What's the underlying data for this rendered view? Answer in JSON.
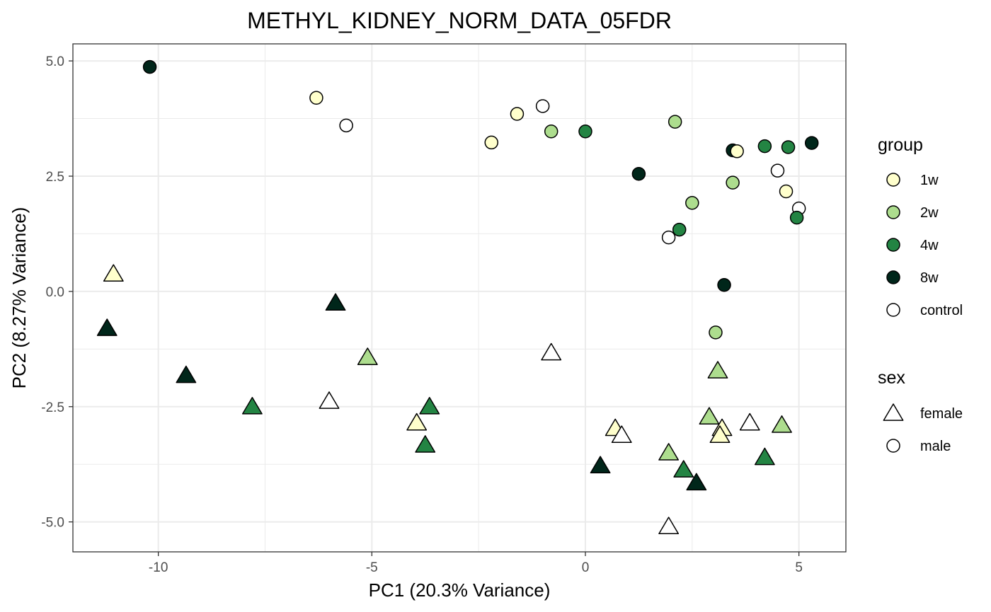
{
  "chart_data": {
    "type": "scatter",
    "title": "METHYL_KIDNEY_NORM_DATA_05FDR",
    "xlabel": "PC1 (20.3% Variance)",
    "ylabel": "PC2 (8.27% Variance)",
    "xlim": [
      -12.0,
      6.1
    ],
    "ylim": [
      -5.65,
      5.37
    ],
    "x_ticks": [
      -10,
      -5,
      0,
      5
    ],
    "x_tick_labels": [
      "-10",
      "-5",
      "0",
      "5"
    ],
    "y_ticks": [
      5.0,
      2.5,
      0.0,
      -2.5,
      -5.0
    ],
    "y_tick_labels": [
      "5.0",
      "2.5",
      "0.0",
      "-2.5",
      "-5.0"
    ],
    "grid": true,
    "legend_position": "right",
    "colors": {
      "1w": "#ffffcc",
      "2w": "#addd8e",
      "4w": "#238443",
      "8w": "#00261a",
      "control": "#ffffff"
    },
    "legends": {
      "group": {
        "title": "group",
        "items": [
          "1w",
          "2w",
          "4w",
          "8w",
          "control"
        ]
      },
      "sex": {
        "title": "sex",
        "items": [
          {
            "label": "female",
            "shape": "triangle"
          },
          {
            "label": "male",
            "shape": "circle"
          }
        ]
      }
    },
    "points": [
      {
        "x": -10.2,
        "y": 4.87,
        "group": "8w",
        "sex": "male"
      },
      {
        "x": -6.3,
        "y": 4.2,
        "group": "1w",
        "sex": "male"
      },
      {
        "x": -5.6,
        "y": 3.6,
        "group": "control",
        "sex": "male"
      },
      {
        "x": -2.2,
        "y": 3.23,
        "group": "1w",
        "sex": "male"
      },
      {
        "x": -1.6,
        "y": 3.85,
        "group": "1w",
        "sex": "male"
      },
      {
        "x": -1.0,
        "y": 4.02,
        "group": "control",
        "sex": "male"
      },
      {
        "x": -0.8,
        "y": 3.47,
        "group": "2w",
        "sex": "male"
      },
      {
        "x": 0.0,
        "y": 3.47,
        "group": "4w",
        "sex": "male"
      },
      {
        "x": 2.1,
        "y": 3.68,
        "group": "2w",
        "sex": "male"
      },
      {
        "x": 1.25,
        "y": 2.55,
        "group": "8w",
        "sex": "male"
      },
      {
        "x": 3.45,
        "y": 3.06,
        "group": "8w",
        "sex": "male"
      },
      {
        "x": 3.55,
        "y": 3.04,
        "group": "1w",
        "sex": "male"
      },
      {
        "x": 4.2,
        "y": 3.15,
        "group": "4w",
        "sex": "male"
      },
      {
        "x": 4.75,
        "y": 3.13,
        "group": "4w",
        "sex": "male"
      },
      {
        "x": 5.3,
        "y": 3.22,
        "group": "8w",
        "sex": "male"
      },
      {
        "x": 4.5,
        "y": 2.62,
        "group": "control",
        "sex": "male"
      },
      {
        "x": 3.45,
        "y": 2.36,
        "group": "2w",
        "sex": "male"
      },
      {
        "x": 4.7,
        "y": 2.17,
        "group": "1w",
        "sex": "male"
      },
      {
        "x": 2.5,
        "y": 1.92,
        "group": "2w",
        "sex": "male"
      },
      {
        "x": 5.0,
        "y": 1.8,
        "group": "control",
        "sex": "male"
      },
      {
        "x": 4.95,
        "y": 1.6,
        "group": "4w",
        "sex": "male"
      },
      {
        "x": 2.2,
        "y": 1.34,
        "group": "4w",
        "sex": "male"
      },
      {
        "x": 1.95,
        "y": 1.17,
        "group": "control",
        "sex": "male"
      },
      {
        "x": 3.25,
        "y": 0.14,
        "group": "8w",
        "sex": "male"
      },
      {
        "x": 3.05,
        "y": -0.89,
        "group": "2w",
        "sex": "male"
      },
      {
        "x": -11.05,
        "y": 0.38,
        "group": "1w",
        "sex": "female"
      },
      {
        "x": -11.2,
        "y": -0.8,
        "group": "8w",
        "sex": "female"
      },
      {
        "x": -5.85,
        "y": -0.25,
        "group": "8w",
        "sex": "female"
      },
      {
        "x": -9.35,
        "y": -1.82,
        "group": "8w",
        "sex": "female"
      },
      {
        "x": -5.1,
        "y": -1.43,
        "group": "2w",
        "sex": "female"
      },
      {
        "x": -7.8,
        "y": -2.5,
        "group": "4w",
        "sex": "female"
      },
      {
        "x": -6.0,
        "y": -2.38,
        "group": "control",
        "sex": "female"
      },
      {
        "x": -3.95,
        "y": -2.85,
        "group": "1w",
        "sex": "female"
      },
      {
        "x": -3.65,
        "y": -2.5,
        "group": "4w",
        "sex": "female"
      },
      {
        "x": -3.75,
        "y": -3.33,
        "group": "4w",
        "sex": "female"
      },
      {
        "x": -0.8,
        "y": -1.33,
        "group": "control",
        "sex": "female"
      },
      {
        "x": 0.7,
        "y": -2.97,
        "group": "1w",
        "sex": "female"
      },
      {
        "x": 0.85,
        "y": -3.12,
        "group": "control",
        "sex": "female"
      },
      {
        "x": 0.35,
        "y": -3.78,
        "group": "8w",
        "sex": "female"
      },
      {
        "x": 1.95,
        "y": -3.5,
        "group": "2w",
        "sex": "female"
      },
      {
        "x": 2.3,
        "y": -3.87,
        "group": "4w",
        "sex": "female"
      },
      {
        "x": 2.6,
        "y": -4.15,
        "group": "8w",
        "sex": "female"
      },
      {
        "x": 1.95,
        "y": -5.1,
        "group": "control",
        "sex": "female"
      },
      {
        "x": 3.1,
        "y": -1.72,
        "group": "2w",
        "sex": "female"
      },
      {
        "x": 2.9,
        "y": -2.72,
        "group": "2w",
        "sex": "female"
      },
      {
        "x": 3.2,
        "y": -2.97,
        "group": "1w",
        "sex": "female"
      },
      {
        "x": 3.15,
        "y": -3.12,
        "group": "1w",
        "sex": "female"
      },
      {
        "x": 3.85,
        "y": -2.85,
        "group": "control",
        "sex": "female"
      },
      {
        "x": 4.6,
        "y": -2.9,
        "group": "2w",
        "sex": "female"
      },
      {
        "x": 4.2,
        "y": -3.6,
        "group": "4w",
        "sex": "female"
      }
    ]
  }
}
